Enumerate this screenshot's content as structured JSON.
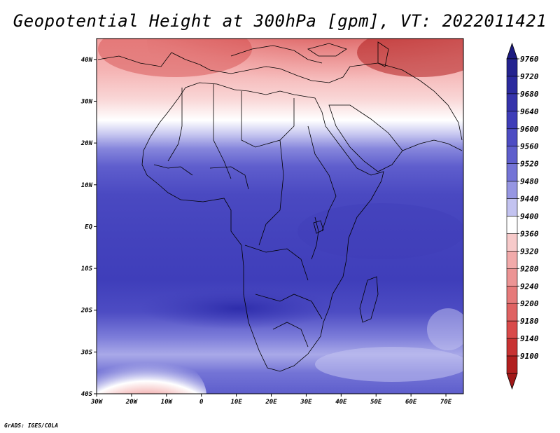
{
  "title": "Geopotential Height at 300hPa [gpm], VT: 2022011421",
  "credit": "GrADS: IGES/COLA",
  "map": {
    "variable": "Geopotential Height",
    "level": "300hPa",
    "units": "gpm",
    "valid_time": "2022011421",
    "lon_range": [
      -30,
      75
    ],
    "lat_range": [
      -40,
      45
    ],
    "lon_ticks": [
      {
        "value": -30,
        "label": "30W"
      },
      {
        "value": -20,
        "label": "20W"
      },
      {
        "value": -10,
        "label": "10W"
      },
      {
        "value": 0,
        "label": "0"
      },
      {
        "value": 10,
        "label": "10E"
      },
      {
        "value": 20,
        "label": "20E"
      },
      {
        "value": 30,
        "label": "30E"
      },
      {
        "value": 40,
        "label": "40E"
      },
      {
        "value": 50,
        "label": "50E"
      },
      {
        "value": 60,
        "label": "60E"
      },
      {
        "value": 70,
        "label": "70E"
      }
    ],
    "lat_ticks": [
      {
        "value": 40,
        "label": "40N"
      },
      {
        "value": 30,
        "label": "30N"
      },
      {
        "value": 20,
        "label": "20N"
      },
      {
        "value": 10,
        "label": "10N"
      },
      {
        "value": 0,
        "label": "EQ"
      },
      {
        "value": -10,
        "label": "10S"
      },
      {
        "value": -20,
        "label": "20S"
      },
      {
        "value": -30,
        "label": "30S"
      },
      {
        "value": -40,
        "label": "40S"
      }
    ]
  },
  "colorbar": {
    "levels": [
      {
        "label": "9760",
        "color": "#24238f"
      },
      {
        "label": "9720",
        "color": "#2b2a9e"
      },
      {
        "label": "9680",
        "color": "#3533ab"
      },
      {
        "label": "9640",
        "color": "#3e3db8"
      },
      {
        "label": "9600",
        "color": "#4d4cc3"
      },
      {
        "label": "9560",
        "color": "#5e5ecc"
      },
      {
        "label": "9520",
        "color": "#7474d6"
      },
      {
        "label": "9480",
        "color": "#9696e2"
      },
      {
        "label": "9440",
        "color": "#c3c3f0"
      },
      {
        "label": "9400",
        "color": "#ffffff"
      },
      {
        "label": "9360",
        "color": "#f7caca"
      },
      {
        "label": "9320",
        "color": "#f2aaaa"
      },
      {
        "label": "9280",
        "color": "#ec9494"
      },
      {
        "label": "9240",
        "color": "#e67a7a"
      },
      {
        "label": "9200",
        "color": "#df6262"
      },
      {
        "label": "9180",
        "color": "#d94a4a"
      },
      {
        "label": "9140",
        "color": "#c83232"
      },
      {
        "label": "9100",
        "color": "#b11f1f"
      }
    ],
    "top_arrow_color": "#1c1b80",
    "bottom_arrow_color": "#a01818"
  }
}
